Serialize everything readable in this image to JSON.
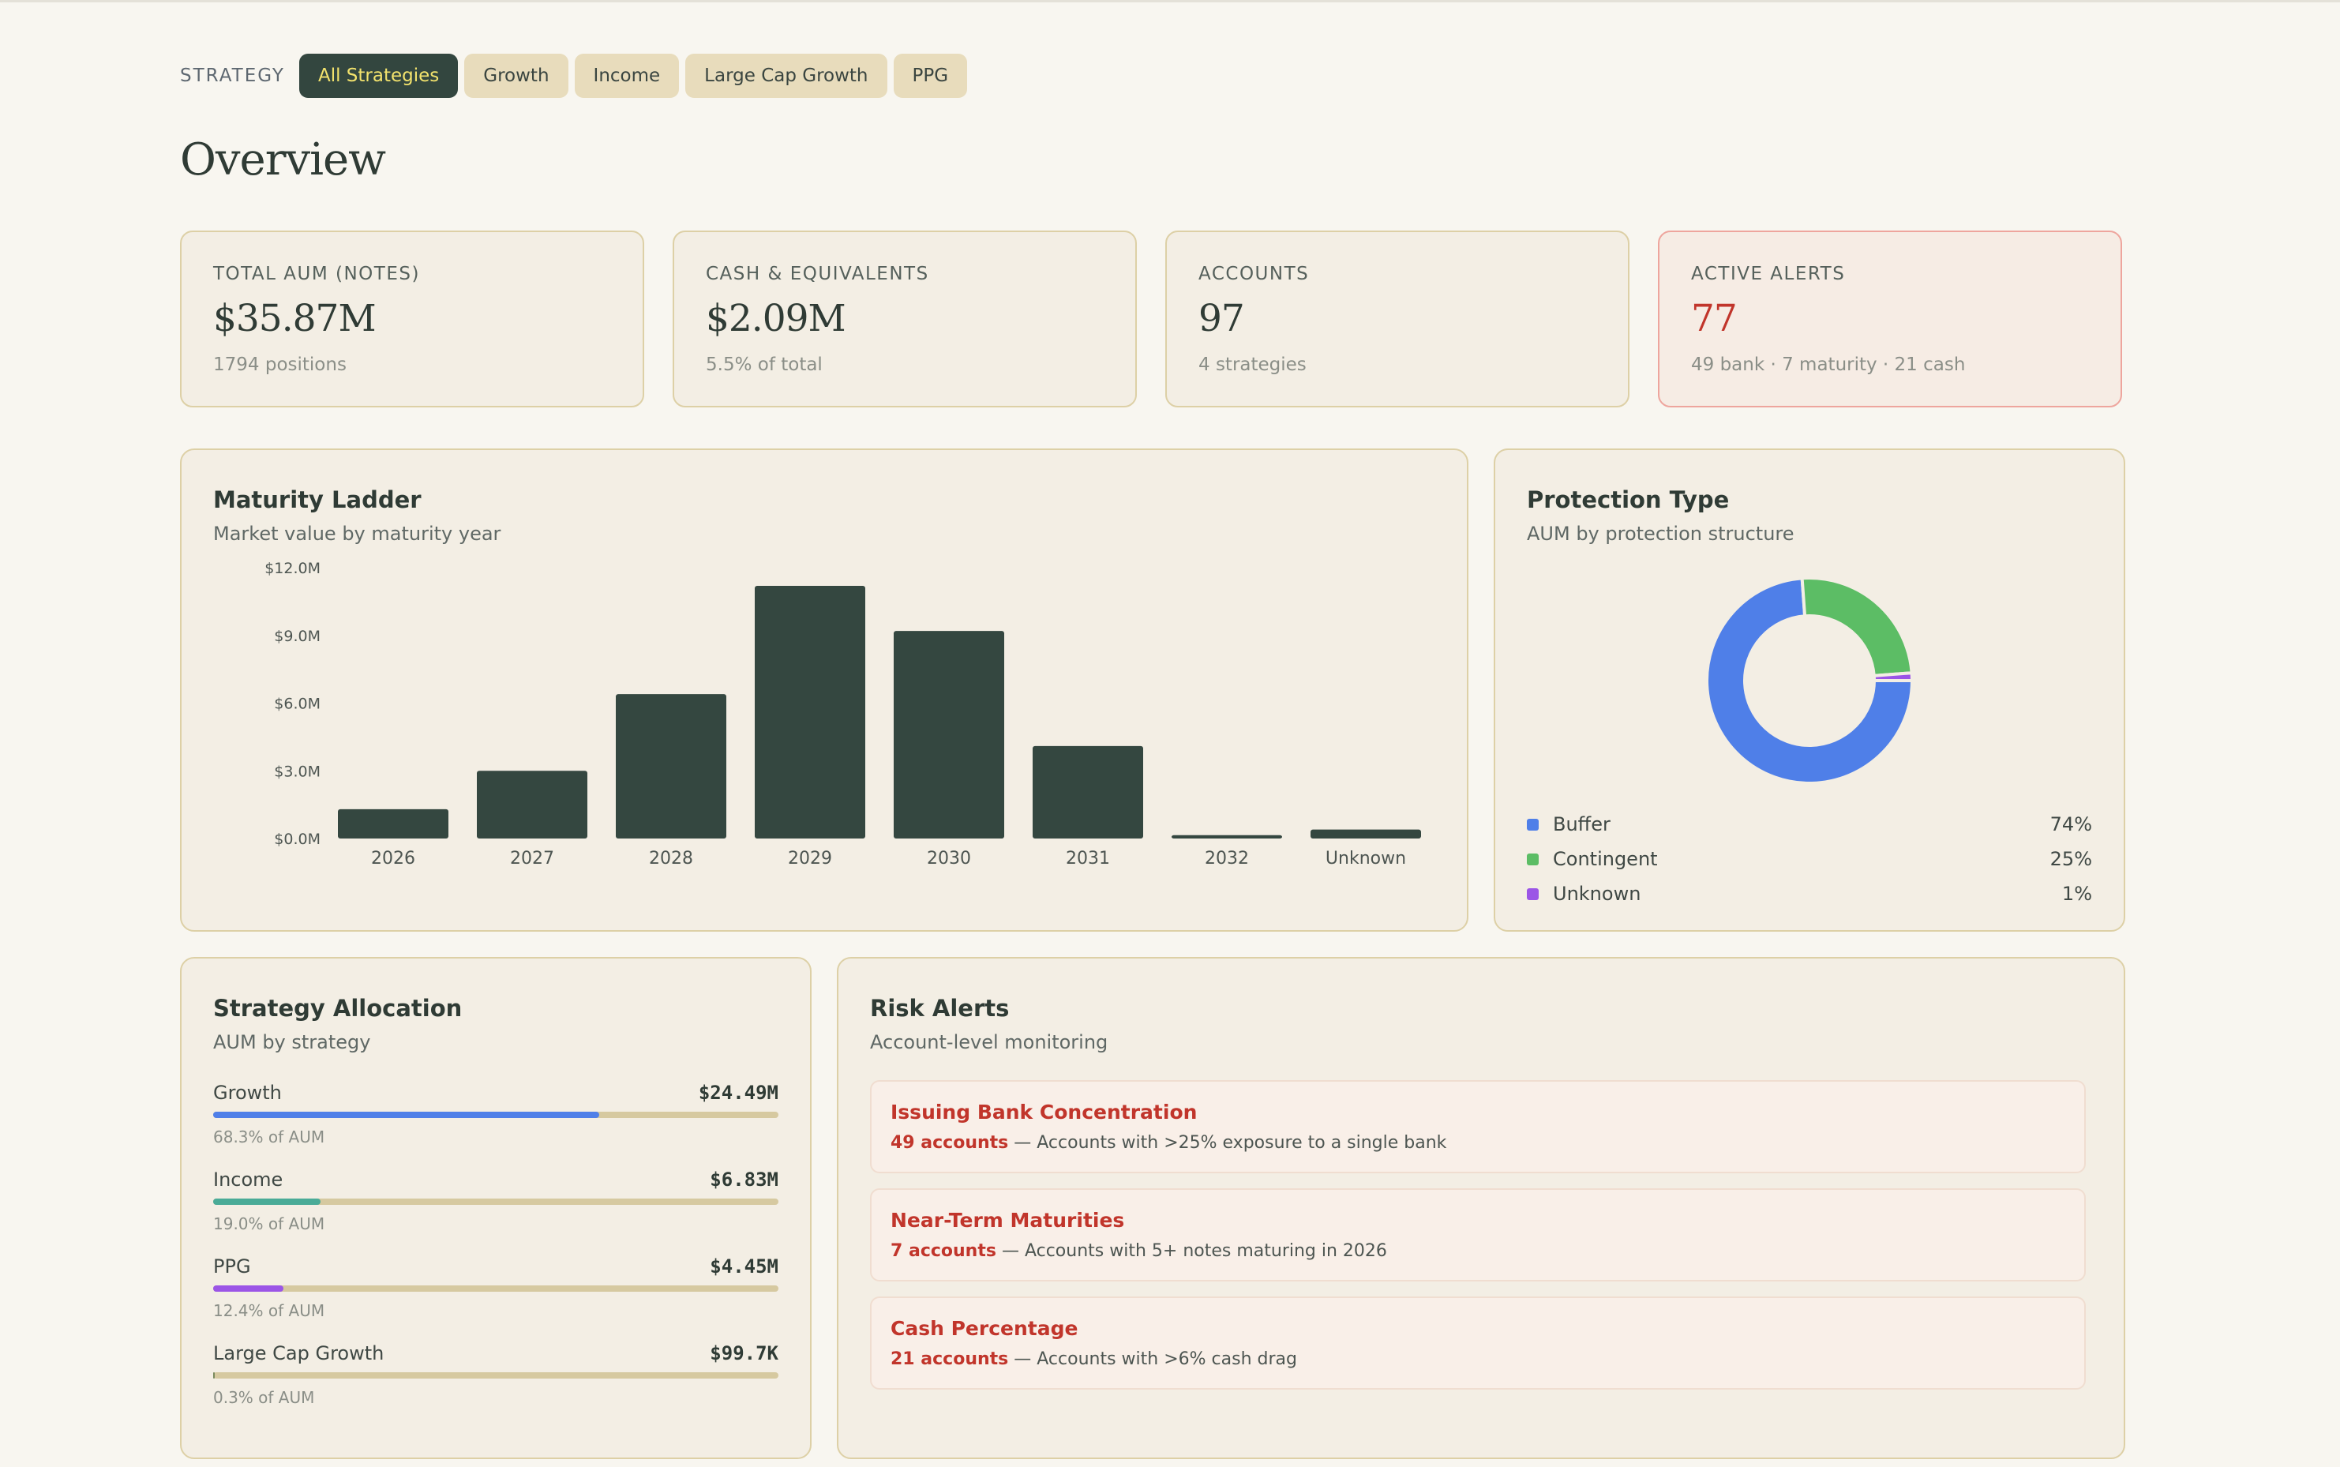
{
  "filter": {
    "label": "STRATEGY",
    "chips": [
      "All Strategies",
      "Growth",
      "Income",
      "Large Cap Growth",
      "PPG"
    ],
    "active": "All Strategies"
  },
  "page": {
    "title": "Overview"
  },
  "kpis": [
    {
      "label": "TOTAL AUM (NOTES)",
      "value": "$35.87M",
      "sub": "1794 positions"
    },
    {
      "label": "CASH & EQUIVALENTS",
      "value": "$2.09M",
      "sub": "5.5% of total"
    },
    {
      "label": "ACCOUNTS",
      "value": "97",
      "sub": "4 strategies"
    },
    {
      "label": "ACTIVE ALERTS",
      "value": "77",
      "sub": "49 bank · 7 maturity · 21 cash",
      "color": "#c1352b"
    }
  ],
  "maturity": {
    "title": "Maturity Ladder",
    "subtitle": "Market value by maturity year"
  },
  "protection": {
    "title": "Protection Type",
    "subtitle": "AUM by protection structure"
  },
  "allocation": {
    "title": "Strategy Allocation",
    "subtitle": "AUM by strategy",
    "items": [
      {
        "name": "Growth",
        "value": "$24.49M",
        "pct_label": "68.3% of AUM",
        "share": 0.683,
        "color": "#4f7fe8"
      },
      {
        "name": "Income",
        "value": "$6.83M",
        "pct_label": "19.0% of AUM",
        "share": 0.19,
        "color": "#4aab97"
      },
      {
        "name": "PPG",
        "value": "$4.45M",
        "pct_label": "12.4% of AUM",
        "share": 0.124,
        "color": "#9b55e6"
      },
      {
        "name": "Large Cap Growth",
        "value": "$99.7K",
        "pct_label": "0.3% of AUM",
        "share": 0.003,
        "color": "#7a8a5e"
      }
    ]
  },
  "risk": {
    "title": "Risk Alerts",
    "subtitle": "Account-level monitoring",
    "alerts": [
      {
        "title": "Issuing Bank Concentration",
        "count": "49 accounts",
        "desc": " — Accounts with >25% exposure to a single bank"
      },
      {
        "title": "Near-Term Maturities",
        "count": "7 accounts",
        "desc": " — Accounts with 5+ notes maturing in 2026"
      },
      {
        "title": "Cash Percentage",
        "count": "21 accounts",
        "desc": " — Accounts with >6% cash drag"
      }
    ]
  },
  "chart_data": [
    {
      "type": "bar",
      "title": "Maturity Ladder",
      "subtitle": "Market value by maturity year",
      "categories": [
        "2026",
        "2027",
        "2028",
        "2029",
        "2030",
        "2031",
        "2032",
        "Unknown"
      ],
      "values": [
        1.3,
        3.0,
        6.4,
        11.2,
        9.2,
        4.1,
        0.15,
        0.4
      ],
      "unit": "$M",
      "y_ticks": [
        "$0.0M",
        "$3.0M",
        "$6.0M",
        "$9.0M",
        "$12.0M"
      ],
      "ylim": [
        0,
        11.2
      ],
      "grid": false,
      "bar_color": "#344740"
    },
    {
      "type": "pie",
      "title": "Protection Type",
      "subtitle": "AUM by protection structure",
      "donut": true,
      "labels": [
        "Buffer",
        "Contingent",
        "Unknown"
      ],
      "values": [
        74,
        25,
        1
      ],
      "value_labels": [
        "74%",
        "25%",
        "1%"
      ],
      "colors": [
        "#4f7fe8",
        "#5cbd65",
        "#9b55e6"
      ],
      "legend": "bottom"
    }
  ]
}
